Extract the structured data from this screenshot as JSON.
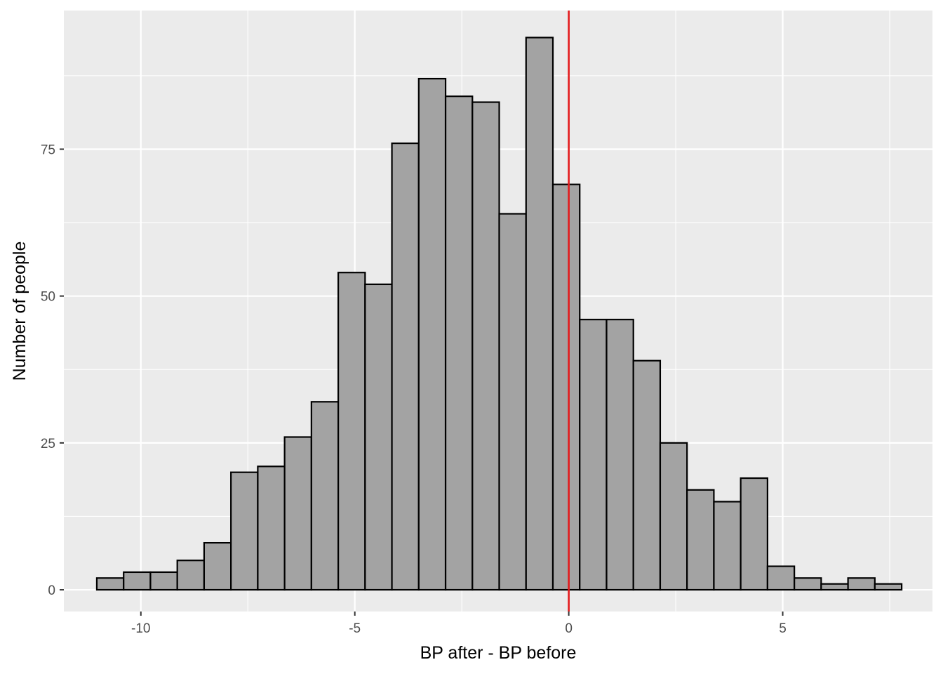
{
  "chart_data": {
    "type": "bar",
    "title": "",
    "xlabel": "BP after - BP before",
    "ylabel": "Number of people",
    "xlim": [
      -11.8,
      8.5
    ],
    "ylim": [
      -3.7,
      98.6
    ],
    "xticks": [
      -10,
      -5,
      0,
      5
    ],
    "xtick_labels": [
      "-10",
      "-5",
      "0",
      "5"
    ],
    "yticks": [
      0,
      25,
      50,
      75
    ],
    "ytick_labels": [
      "0",
      "25",
      "50",
      "75"
    ],
    "bin_width": 0.627,
    "bin_start": -11.03,
    "values": [
      2,
      3,
      3,
      5,
      8,
      20,
      21,
      26,
      32,
      54,
      52,
      76,
      87,
      84,
      83,
      64,
      94,
      69,
      46,
      46,
      39,
      25,
      17,
      15,
      19,
      4,
      2,
      1,
      2,
      1
    ],
    "vline": {
      "x": 0,
      "color": "#e31a1c"
    },
    "bar_fill": "#a3a3a3",
    "bar_stroke": "#000000",
    "panel_background": "#ebebeb",
    "grid": true,
    "legend": "none"
  }
}
